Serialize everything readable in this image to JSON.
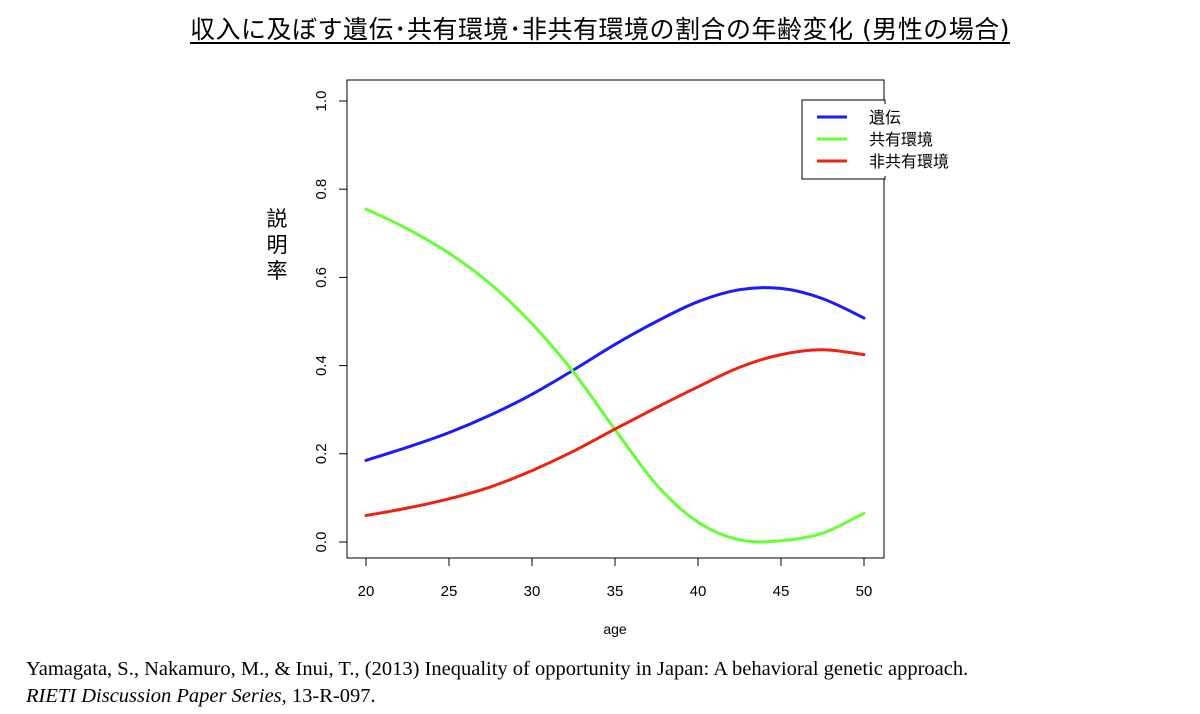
{
  "title": "収入に及ぼす遺伝･共有環境･非共有環境の割合の年齢変化 (男性の場合)",
  "chart_data": {
    "type": "line",
    "title": "収入に及ぼす遺伝･共有環境･非共有環境の割合の年齢変化 (男性の場合)",
    "xlabel": "age",
    "ylabel": "説明率",
    "xlim": [
      20,
      50
    ],
    "ylim": [
      0,
      1.0
    ],
    "xticks": [
      "20",
      "25",
      "30",
      "35",
      "40",
      "45",
      "50"
    ],
    "yticks": [
      "0.0",
      "0.2",
      "0.4",
      "0.6",
      "0.8",
      "1.0"
    ],
    "x": [
      20,
      22.5,
      25,
      27.5,
      30,
      32.5,
      35,
      37.5,
      40,
      42.5,
      45,
      47.5,
      50
    ],
    "series": [
      {
        "name": "遺伝",
        "color": "#1a1aff",
        "values": [
          0.185,
          0.215,
          0.248,
          0.288,
          0.335,
          0.39,
          0.448,
          0.5,
          0.545,
          0.572,
          0.575,
          0.552,
          0.508
        ]
      },
      {
        "name": "共有環境",
        "color": "#66ff33",
        "values": [
          0.755,
          0.71,
          0.655,
          0.585,
          0.495,
          0.385,
          0.255,
          0.13,
          0.045,
          0.005,
          0.003,
          0.02,
          0.065
        ]
      },
      {
        "name": "非共有環境",
        "color": "#ee2211",
        "values": [
          0.06,
          0.077,
          0.098,
          0.125,
          0.162,
          0.206,
          0.256,
          0.305,
          0.352,
          0.396,
          0.425,
          0.436,
          0.425
        ]
      }
    ],
    "legend_position": "top-right"
  },
  "citation": {
    "line1": "Yamagata, S., Nakamuro, M., & Inui, T., (2013) Inequality of opportunity in Japan: A behavioral genetic approach.",
    "series_name": "RIETI Discussion Paper Series",
    "rest": ", 13-R-097."
  }
}
